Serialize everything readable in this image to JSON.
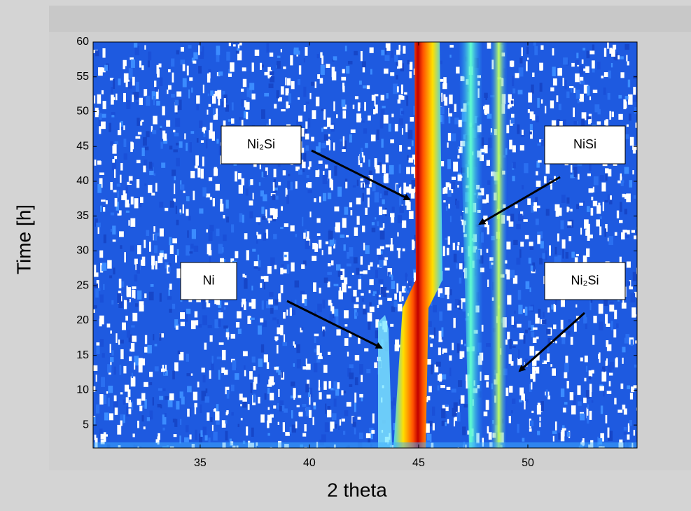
{
  "chart_data": {
    "type": "contour",
    "xlabel": "2 theta",
    "ylabel": "Time [h]",
    "xlim": [
      30.1,
      55
    ],
    "ylim": [
      1.7,
      60
    ],
    "xticks": [
      35,
      40,
      45,
      50
    ],
    "yticks": [
      5,
      10,
      15,
      20,
      25,
      30,
      35,
      40,
      45,
      50,
      55,
      60
    ],
    "annotations": [
      "Ni₂Si",
      "NiSi",
      "Ni",
      "Ni₂Si"
    ]
  }
}
